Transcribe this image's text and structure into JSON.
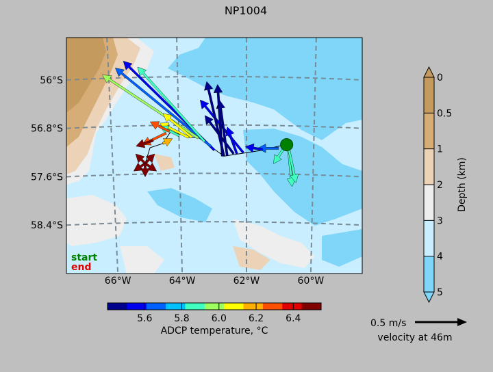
{
  "chart_data": {
    "type": "map",
    "title": "NP1004",
    "lon_ticks": [
      {
        "value": -66,
        "label": "66°W"
      },
      {
        "value": -64,
        "label": "64°W"
      },
      {
        "value": -62,
        "label": "62°W"
      },
      {
        "value": -60,
        "label": "60°W"
      }
    ],
    "lat_ticks": [
      {
        "value": -56.0,
        "label": "56°S"
      },
      {
        "value": -56.8,
        "label": "56.8°S"
      },
      {
        "value": -57.6,
        "label": "57.6°S"
      },
      {
        "value": -58.4,
        "label": "58.4°S"
      }
    ],
    "lon_range": [
      -67.6,
      -58.4
    ],
    "lat_range": [
      -55.3,
      -59.2
    ],
    "depth_colorbar": {
      "label": "Depth (km)",
      "ticks": [
        "0",
        "0.5",
        "1",
        "2",
        "3",
        "4",
        "5"
      ],
      "colors": [
        "#c49a5e",
        "#d6ad77",
        "#ecd2b6",
        "#eeeeee",
        "#c8eeff",
        "#7fd6f8"
      ],
      "extend_low_color": "#c49a5e",
      "extend_high_color": "#7fd6f8"
    },
    "temp_colorbar": {
      "label": "ADCP temperature, °C",
      "ticks": [
        "5.6",
        "5.8",
        "6.0",
        "6.2",
        "6.4"
      ],
      "range": [
        5.4,
        6.55
      ],
      "colors": [
        "#00008f",
        "#0000f0",
        "#0060ff",
        "#00c0ff",
        "#40ffc0",
        "#a0ff60",
        "#ffff00",
        "#ffb000",
        "#ff5000",
        "#e00000",
        "#800000"
      ]
    },
    "scale_arrow": {
      "value_label": "0.5 m/s",
      "caption": "velocity at 46m",
      "speed": 0.5
    },
    "legend": {
      "start_label": "start",
      "end_label": "end",
      "start_color": "#008000",
      "end_color": "#e00000"
    },
    "track": [
      [
        -60.8,
        -57.07
      ],
      [
        -61.6,
        -57.17
      ],
      [
        -62.7,
        -57.26
      ],
      [
        -63.5,
        -56.95
      ],
      [
        -63.75,
        -56.95
      ],
      [
        -64.35,
        -56.85
      ],
      [
        -64.6,
        -57.05
      ],
      [
        -65.0,
        -57.12
      ],
      [
        -65.15,
        -57.38
      ],
      [
        -65.2,
        -57.42
      ]
    ],
    "vectors": [
      {
        "lon": -60.7,
        "lat": -57.1,
        "u": 0.04,
        "v": -0.42,
        "temp": 5.9
      },
      {
        "lon": -60.7,
        "lat": -57.1,
        "u": 0.08,
        "v": -0.38,
        "temp": 5.85
      },
      {
        "lon": -60.8,
        "lat": -57.1,
        "u": -0.12,
        "v": -0.18,
        "temp": 5.9
      },
      {
        "lon": -61.0,
        "lat": -57.13,
        "u": -0.22,
        "v": 0.0,
        "temp": 5.65
      },
      {
        "lon": -61.5,
        "lat": -57.15,
        "u": -0.18,
        "v": 0.03,
        "temp": 5.55
      },
      {
        "lon": -62.1,
        "lat": -57.2,
        "u": -0.45,
        "v": 0.55,
        "temp": 5.6
      },
      {
        "lon": -62.3,
        "lat": -57.22,
        "u": -0.1,
        "v": 0.28,
        "temp": 5.55
      },
      {
        "lon": -62.4,
        "lat": -57.22,
        "u": -0.3,
        "v": 0.4,
        "temp": 5.5
      },
      {
        "lon": -62.6,
        "lat": -57.25,
        "u": -0.08,
        "v": 0.58,
        "temp": 5.5
      },
      {
        "lon": -62.7,
        "lat": -57.26,
        "u": -0.18,
        "v": 0.78,
        "temp": 5.45
      },
      {
        "lon": -62.75,
        "lat": -57.26,
        "u": -0.05,
        "v": 0.75,
        "temp": 5.5
      },
      {
        "lon": -63.0,
        "lat": -57.16,
        "u": -0.95,
        "v": 0.93,
        "temp": 5.6
      },
      {
        "lon": -63.1,
        "lat": -57.1,
        "u": -1.0,
        "v": 0.82,
        "temp": 5.7
      },
      {
        "lon": -63.3,
        "lat": -57.02,
        "u": -0.7,
        "v": 0.78,
        "temp": 5.9
      },
      {
        "lon": -63.5,
        "lat": -56.96,
        "u": -1.0,
        "v": 0.66,
        "temp": 5.95
      },
      {
        "lon": -63.7,
        "lat": -56.95,
        "u": -0.3,
        "v": 0.25,
        "temp": 6.05
      },
      {
        "lon": -63.8,
        "lat": -56.95,
        "u": -0.3,
        "v": 0.15,
        "temp": 6.1
      },
      {
        "lon": -64.1,
        "lat": -56.92,
        "u": -0.2,
        "v": 0.1,
        "temp": 5.9
      },
      {
        "lon": -64.4,
        "lat": -56.85,
        "u": -0.2,
        "v": 0.1,
        "temp": 6.3
      },
      {
        "lon": -64.5,
        "lat": -56.88,
        "u": -0.25,
        "v": -0.12,
        "temp": 6.25
      },
      {
        "lon": -64.6,
        "lat": -57.05,
        "u": 0.1,
        "v": 0.05,
        "temp": 6.2
      },
      {
        "lon": -64.9,
        "lat": -57.0,
        "u": -0.18,
        "v": -0.06,
        "temp": 6.45
      },
      {
        "lon": -65.15,
        "lat": -57.38,
        "u": 0.1,
        "v": 0.1,
        "temp": 6.45
      },
      {
        "lon": -65.15,
        "lat": -57.38,
        "u": -0.1,
        "v": 0.1,
        "temp": 6.5
      },
      {
        "lon": -65.15,
        "lat": -57.38,
        "u": 0.12,
        "v": -0.08,
        "temp": 6.45
      },
      {
        "lon": -65.15,
        "lat": -57.38,
        "u": -0.12,
        "v": -0.08,
        "temp": 6.5
      },
      {
        "lon": -65.15,
        "lat": -57.38,
        "u": 0.0,
        "v": -0.14,
        "temp": 6.45
      }
    ],
    "start": {
      "lon": -60.75,
      "lat": -57.07
    },
    "end": {
      "lon": -65.2,
      "lat": -57.38
    }
  }
}
